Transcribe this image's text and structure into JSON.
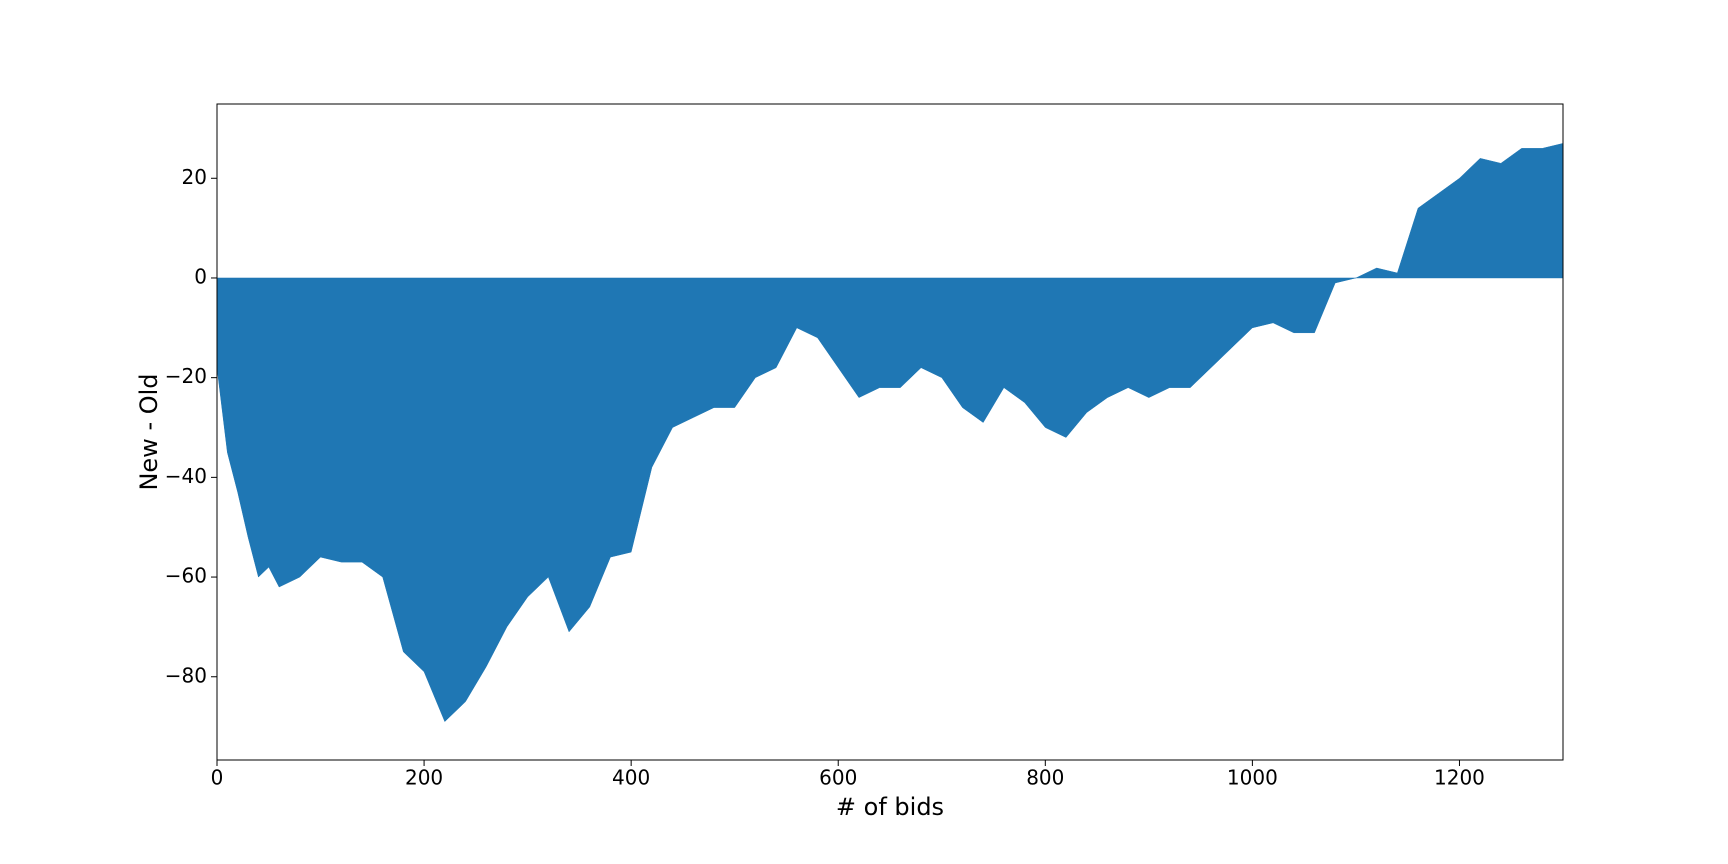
{
  "chart_data": {
    "type": "area",
    "xlabel": "# of bids",
    "ylabel": "New - Old",
    "color": "#1f77b4",
    "x": [
      0,
      10,
      20,
      30,
      40,
      50,
      60,
      80,
      100,
      120,
      140,
      160,
      180,
      200,
      220,
      240,
      260,
      280,
      300,
      320,
      340,
      360,
      380,
      400,
      420,
      440,
      460,
      480,
      500,
      520,
      540,
      560,
      580,
      600,
      620,
      640,
      660,
      680,
      700,
      720,
      740,
      760,
      780,
      800,
      820,
      840,
      860,
      880,
      900,
      920,
      940,
      960,
      980,
      1000,
      1020,
      1040,
      1060,
      1080,
      1100,
      1120,
      1140,
      1160,
      1180,
      1200,
      1220,
      1240,
      1260,
      1280,
      1300
    ],
    "values": [
      -18,
      -35,
      -43,
      -52,
      -60,
      -58,
      -62,
      -60,
      -56,
      -57,
      -57,
      -60,
      -75,
      -79,
      -89,
      -85,
      -78,
      -70,
      -64,
      -60,
      -71,
      -66,
      -56,
      -55,
      -38,
      -30,
      -28,
      -26,
      -26,
      -20,
      -18,
      -10,
      -12,
      -18,
      -24,
      -22,
      -22,
      -18,
      -20,
      -26,
      -29,
      -22,
      -25,
      -30,
      -32,
      -27,
      -24,
      -22,
      -24,
      -22,
      -22,
      -18,
      -14,
      -10,
      -9,
      -11,
      -11,
      -1,
      0,
      2,
      1,
      14,
      17,
      20,
      24,
      23,
      26,
      26,
      27
    ],
    "xlim": [
      0,
      1300
    ],
    "ylim": [
      -96.7,
      34.9
    ],
    "xticks": [
      0,
      200,
      400,
      600,
      800,
      1000,
      1200
    ],
    "yticks": [
      {
        "value": -80,
        "label": "−80"
      },
      {
        "value": -60,
        "label": "−60"
      },
      {
        "value": -40,
        "label": "−40"
      },
      {
        "value": -20,
        "label": "−20"
      },
      0,
      20
    ]
  }
}
